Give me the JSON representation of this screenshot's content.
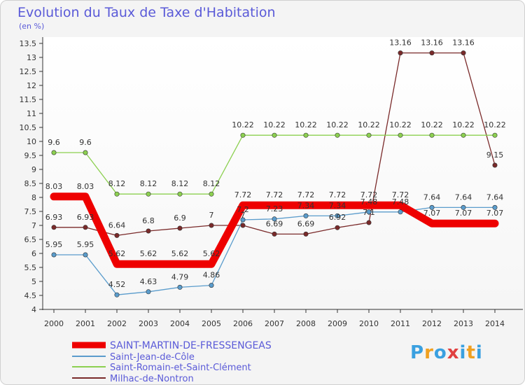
{
  "header": {
    "title": "Evolution du Taux de Taxe d'Habitation",
    "unit": "(en %)"
  },
  "brand": {
    "text": "Proxiti",
    "letters": [
      {
        "ch": "P",
        "color": "#3aa0e0"
      },
      {
        "ch": "r",
        "color": "#f0a020"
      },
      {
        "ch": "o",
        "color": "#3aa0e0"
      },
      {
        "ch": "x",
        "color": "#e04040"
      },
      {
        "ch": "i",
        "color": "#3aa0e0"
      },
      {
        "ch": "t",
        "color": "#f0a020"
      },
      {
        "ch": "i",
        "color": "#3aa0e0"
      }
    ]
  },
  "chart_data": {
    "type": "line",
    "title": "Evolution du Taux de Taxe d'Habitation",
    "ylabel": "(en %)",
    "xlabel": "",
    "x": [
      "2000",
      "2001",
      "2002",
      "2003",
      "2004",
      "2005",
      "2006",
      "2007",
      "2008",
      "2009",
      "2010",
      "2011",
      "2012",
      "2013",
      "2014"
    ],
    "ylim": [
      4,
      13.5
    ],
    "yticks": [
      "4",
      "4.5",
      "5",
      "5.5",
      "6",
      "6.5",
      "7",
      "7.5",
      "8",
      "8.5",
      "9",
      "9.5",
      "10",
      "10.5",
      "11",
      "11.5",
      "12",
      "12.5",
      "13",
      "13.5"
    ],
    "grid": false,
    "legend_position": "bottom-left",
    "series": [
      {
        "name": "SAINT-MARTIN-DE-FRESSENGEAS",
        "color": "#ee0000",
        "values": [
          8.03,
          8.03,
          5.62,
          5.62,
          5.62,
          5.62,
          7.72,
          7.72,
          7.72,
          7.72,
          7.72,
          7.72,
          7.07,
          7.07,
          7.07
        ],
        "labels": [
          "8.03",
          "8.03",
          "5.62",
          "5.62",
          "5.62",
          "5.62",
          "7.72",
          "7.72",
          "7.72",
          "7.72",
          "7.72",
          "7.72",
          "7.07",
          "7.07",
          "7.07"
        ]
      },
      {
        "name": "Saint-Jean-de-Côle",
        "color": "#5a9ccc",
        "values": [
          5.95,
          5.95,
          4.52,
          4.63,
          4.79,
          4.86,
          7.2,
          7.23,
          7.34,
          7.34,
          7.48,
          7.48,
          7.64,
          7.64,
          7.64
        ],
        "labels": [
          "5.95",
          "5.95",
          "4.52",
          "4.63",
          "4.79",
          "4.86",
          "7.2",
          "7.23",
          "7.34",
          "7.34",
          "7.48",
          "7.48",
          "7.64",
          "7.64",
          "7.64"
        ]
      },
      {
        "name": "Saint-Romain-et-Saint-Clément",
        "color": "#8cd050",
        "values": [
          9.6,
          9.6,
          8.12,
          8.12,
          8.12,
          8.12,
          10.22,
          10.22,
          10.22,
          10.22,
          10.22,
          10.22,
          10.22,
          10.22,
          10.22
        ],
        "labels": [
          "9.6",
          "9.6",
          "8.12",
          "8.12",
          "8.12",
          "8.12",
          "10.22",
          "10.22",
          "10.22",
          "10.22",
          "10.22",
          "10.22",
          "10.22",
          "10.22",
          "10.22"
        ]
      },
      {
        "name": "Milhac-de-Nontron",
        "color": "#7a2a2a",
        "values": [
          6.93,
          6.93,
          6.64,
          6.8,
          6.9,
          7.0,
          7.0,
          6.69,
          6.69,
          6.92,
          7.1,
          13.16,
          13.16,
          13.16,
          9.15
        ],
        "labels": [
          "6.93",
          "6.93",
          "6.64",
          "6.8",
          "6.9",
          "7",
          "7",
          "6.69",
          "6.69",
          "6.92",
          "7.1",
          "13.16",
          "13.16",
          "13.16",
          "9.15"
        ]
      }
    ]
  }
}
